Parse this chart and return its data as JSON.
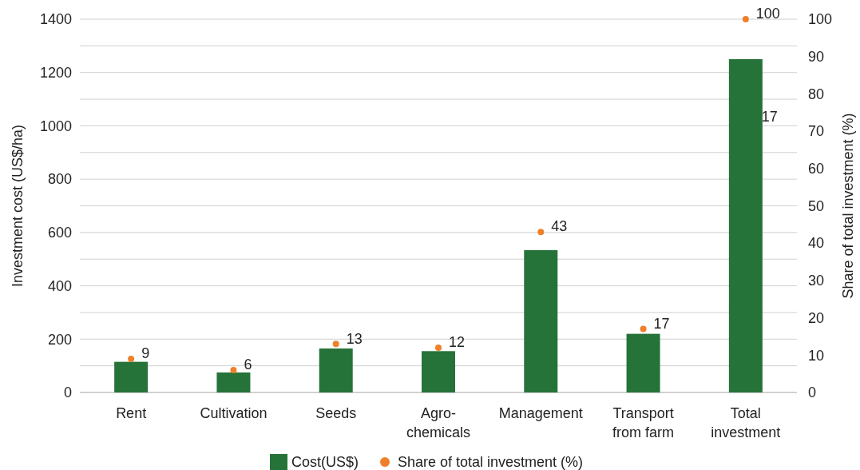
{
  "chart_data": {
    "type": "bar",
    "ylabel": "Investment cost (US$/ha)",
    "y2label": "Share of total investment (%)",
    "categories": [
      "Rent",
      "Cultivation",
      "Seeds",
      "Agro-chemicals",
      "Management",
      "Transport from farm",
      "Total investment"
    ],
    "series": [
      {
        "name": "Cost(US$)",
        "color": "#267339",
        "values": [
          115,
          75,
          165,
          155,
          534,
          220,
          1250
        ]
      },
      {
        "name": "Share of total investment (%)",
        "type": "scatter",
        "axis": "y2",
        "color": "#f07f2a",
        "marker": "circle",
        "values": [
          9,
          6,
          13,
          12,
          43,
          17,
          100
        ],
        "value_labels": [
          "9",
          "6",
          "13",
          "12",
          "43",
          "17",
          "100"
        ]
      }
    ],
    "annotations": [
      "17"
    ],
    "ylim": [
      0,
      1400
    ],
    "yticks": [
      0,
      {
        "value": 100,
        "label": null
      },
      200,
      {
        "value": 300,
        "label": null
      },
      400,
      {
        "value": 500,
        "label": null
      },
      600,
      {
        "value": 700,
        "label": null
      },
      800,
      {
        "value": 900,
        "label": null
      },
      1000,
      {
        "value": 1100,
        "label": null
      },
      1200,
      {
        "value": 1300,
        "label": null
      },
      1400
    ],
    "y2lim": [
      0,
      100
    ],
    "y2ticks": [
      0,
      10,
      20,
      30,
      40,
      50,
      60,
      70,
      80,
      90,
      100
    ],
    "grid": "y",
    "legend": "bottom"
  }
}
